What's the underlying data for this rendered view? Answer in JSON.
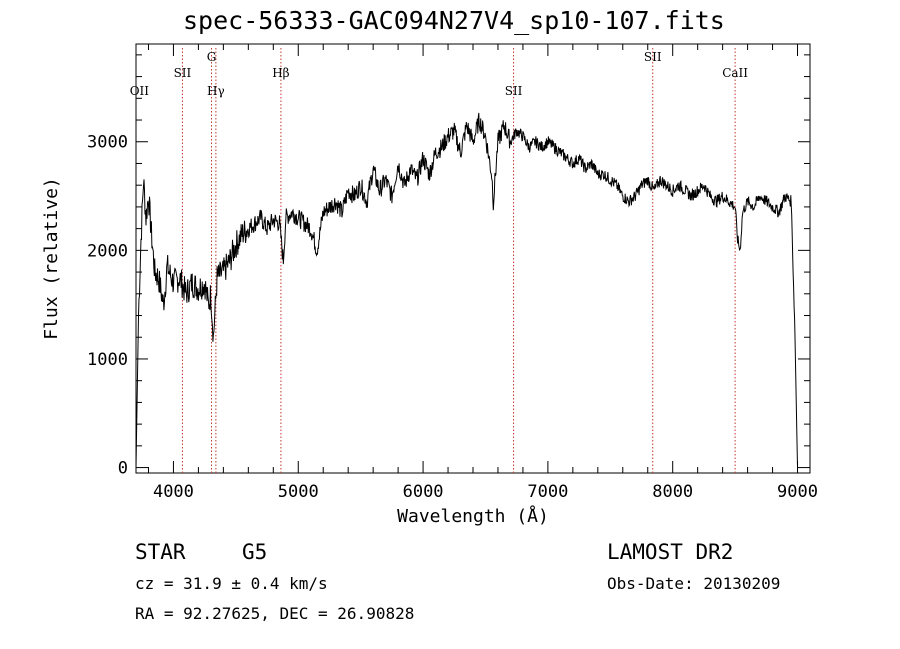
{
  "title": "spec-56333-GAC094N27V4_sp10-107.fits",
  "chart_data": {
    "type": "line",
    "xlabel": "Wavelength (Å)",
    "ylabel": "Flux (relative)",
    "xlim": [
      3700,
      9100
    ],
    "ylim": [
      -50,
      3900
    ],
    "xticks": [
      4000,
      5000,
      6000,
      7000,
      8000,
      9000
    ],
    "yticks": [
      0,
      1000,
      2000,
      3000
    ],
    "grid": false,
    "series": [
      {
        "x": [
          3700,
          3720,
          3740,
          3760,
          3780,
          3800,
          3820,
          3850,
          3880,
          3920,
          3950,
          4000,
          4050,
          4100,
          4150,
          4200,
          4250,
          4280,
          4300,
          4320,
          4350,
          4400,
          4450,
          4500,
          4550,
          4600,
          4650,
          4700,
          4750,
          4800,
          4850,
          4880,
          4900,
          4950,
          5000,
          5050,
          5100,
          5150,
          5200,
          5250,
          5300,
          5350,
          5400,
          5450,
          5500,
          5550,
          5600,
          5650,
          5700,
          5750,
          5800,
          5850,
          5900,
          5950,
          6000,
          6050,
          6100,
          6150,
          6200,
          6250,
          6300,
          6350,
          6400,
          6450,
          6500,
          6550,
          6563,
          6600,
          6650,
          6700,
          6750,
          6800,
          6850,
          6900,
          6950,
          7000,
          7050,
          7100,
          7150,
          7200,
          7250,
          7300,
          7350,
          7400,
          7450,
          7500,
          7550,
          7600,
          7650,
          7700,
          7750,
          7800,
          7850,
          7900,
          7950,
          8000,
          8050,
          8100,
          8150,
          8200,
          8250,
          8300,
          8350,
          8400,
          8450,
          8500,
          8520,
          8540,
          8560,
          8600,
          8650,
          8700,
          8750,
          8800,
          8850,
          8900,
          8950,
          8980,
          9000
        ],
        "y": [
          0,
          1400,
          2100,
          2650,
          2300,
          2500,
          2200,
          1800,
          1750,
          1500,
          1850,
          1700,
          1750,
          1600,
          1700,
          1650,
          1700,
          1500,
          1600,
          1200,
          1750,
          1800,
          1900,
          2050,
          2150,
          2200,
          2250,
          2300,
          2200,
          2280,
          2250,
          1900,
          2300,
          2350,
          2300,
          2250,
          2200,
          2000,
          2350,
          2400,
          2450,
          2350,
          2550,
          2500,
          2600,
          2450,
          2750,
          2550,
          2650,
          2500,
          2800,
          2600,
          2750,
          2650,
          2850,
          2700,
          2900,
          2950,
          3050,
          3100,
          2900,
          3150,
          3000,
          3200,
          3050,
          2700,
          2450,
          3000,
          3150,
          3000,
          3100,
          3050,
          2950,
          3000,
          2950,
          3000,
          2950,
          2900,
          2850,
          2800,
          2850,
          2750,
          2800,
          2700,
          2700,
          2650,
          2600,
          2500,
          2450,
          2500,
          2600,
          2650,
          2550,
          2650,
          2600,
          2550,
          2600,
          2550,
          2500,
          2550,
          2600,
          2500,
          2450,
          2500,
          2450,
          2400,
          2100,
          2000,
          2350,
          2450,
          2400,
          2500,
          2450,
          2400,
          2350,
          2500,
          2450,
          1200,
          0
        ]
      }
    ],
    "line_labels": [
      {
        "text": "OII",
        "x": 3727,
        "row": 3
      },
      {
        "text": "SII",
        "x": 4072,
        "row": 2
      },
      {
        "text": "G",
        "x": 4305,
        "row": 1
      },
      {
        "text": "Hγ",
        "x": 4340,
        "row": 3
      },
      {
        "text": "Hβ",
        "x": 4861,
        "row": 2
      },
      {
        "text": "SII",
        "x": 6725,
        "row": 3
      },
      {
        "text": "SII",
        "x": 7840,
        "row": 1
      },
      {
        "text": "CaII",
        "x": 8500,
        "row": 2
      }
    ],
    "marker_lines": [
      4072,
      4305,
      4340,
      4861,
      6725,
      7840,
      8500
    ],
    "marker_color": "#c0392b"
  },
  "footer": {
    "class_label": "STAR",
    "subclass_label": "G5",
    "survey": "LAMOST DR2",
    "cz_text": "cz = 31.9 ± 0.4 km/s",
    "obs_date": "Obs-Date: 20130209",
    "coords": "RA =  92.27625, DEC =  26.90828"
  }
}
